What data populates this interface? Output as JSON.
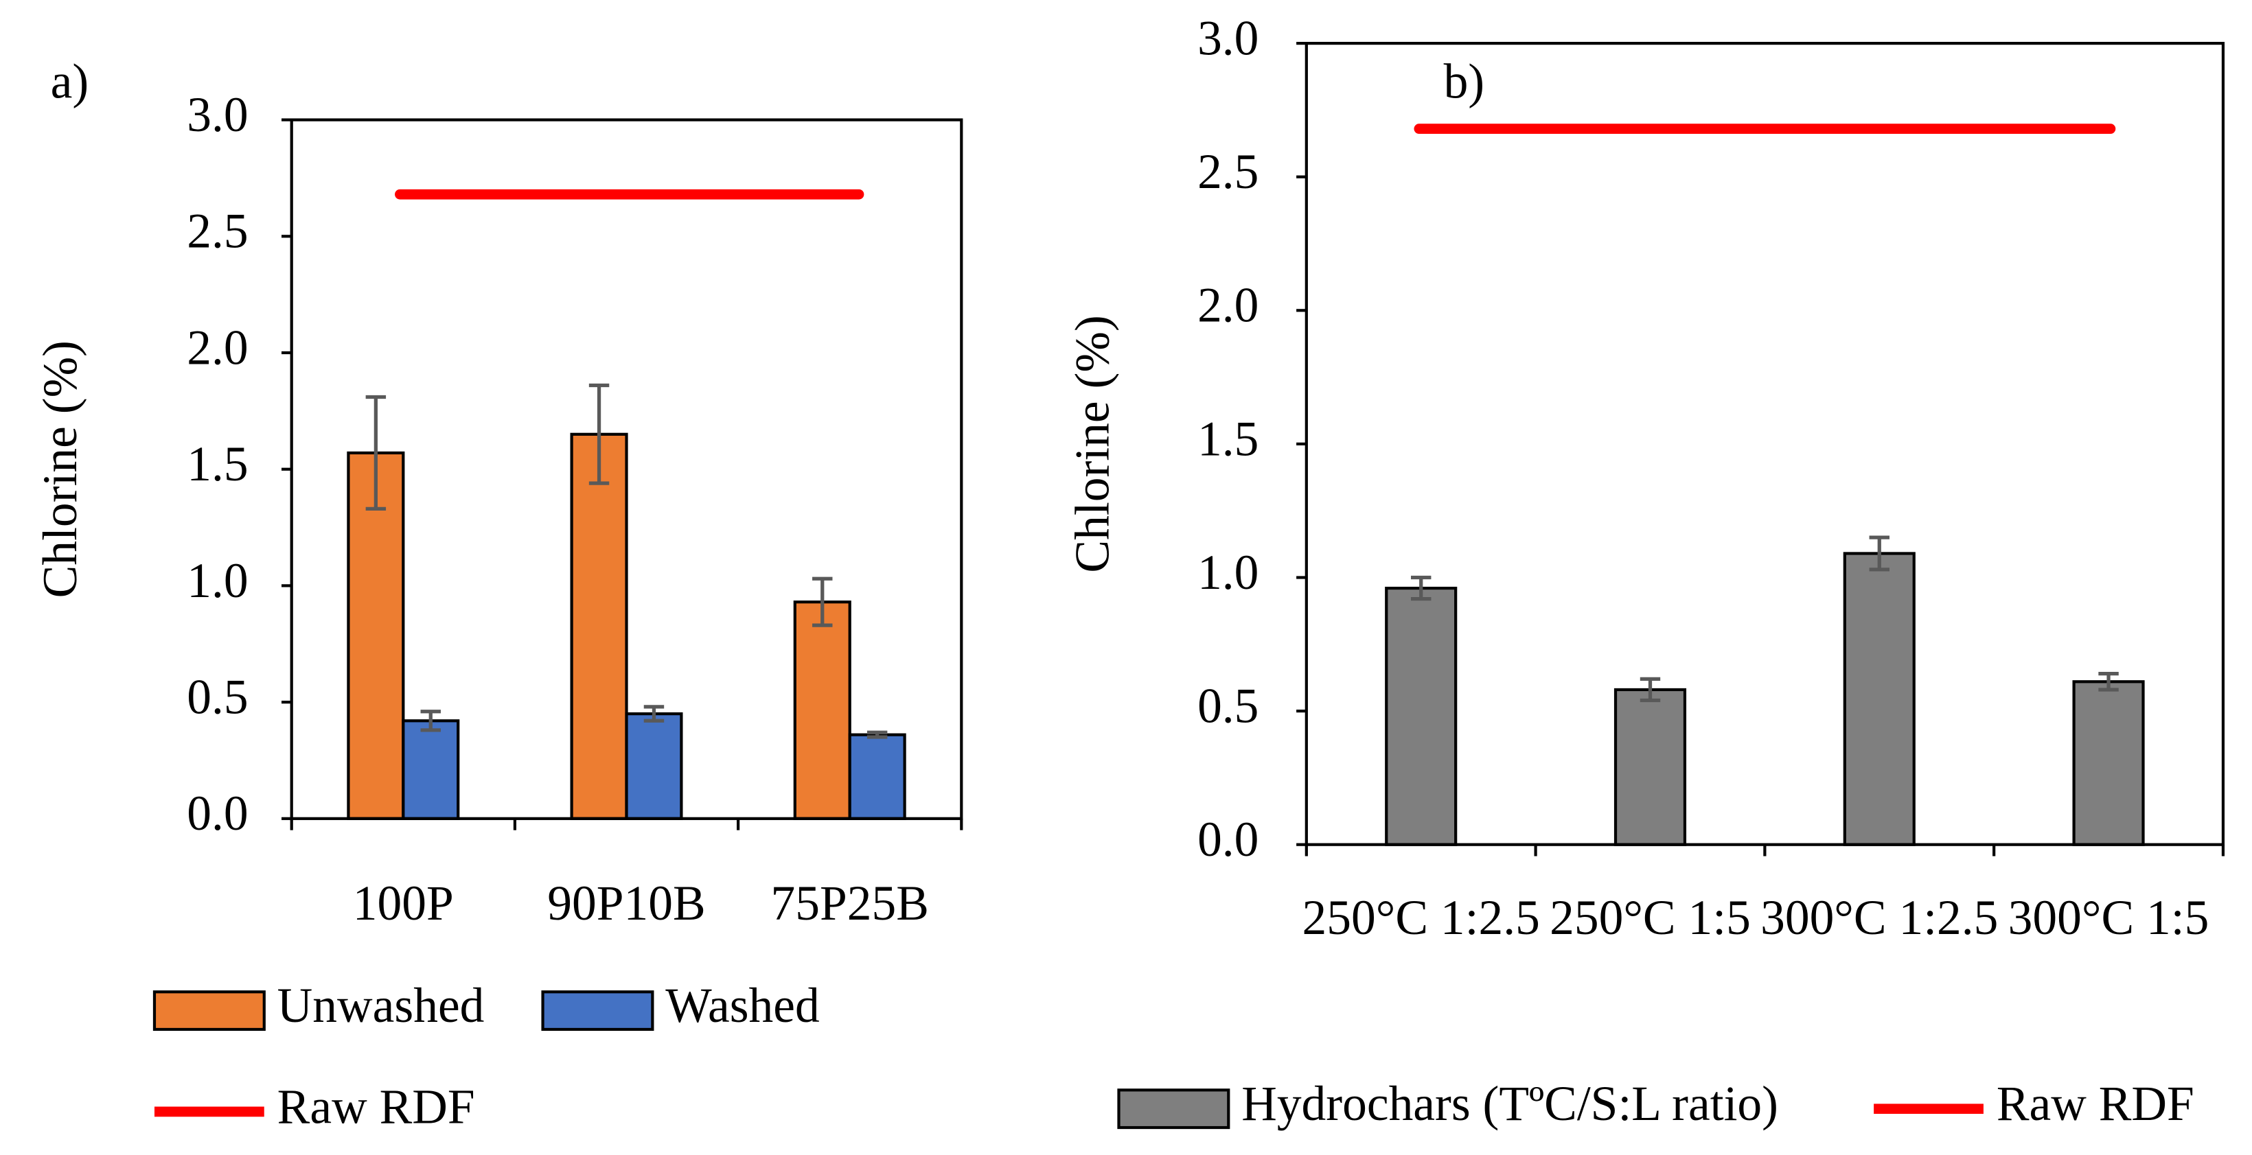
{
  "chart_data": [
    {
      "type": "bar",
      "panel_label": "a)",
      "y_label": "Chlorine (%)",
      "categories": [
        "100P",
        "90P10B",
        "75P25B"
      ],
      "series": [
        {
          "name": "Unwashed",
          "color": "#ed7d31",
          "values": [
            1.57,
            1.65,
            0.93
          ],
          "errors": [
            0.24,
            0.21,
            0.1
          ]
        },
        {
          "name": "Washed",
          "color": "#4472c4",
          "values": [
            0.42,
            0.45,
            0.36
          ],
          "errors": [
            0.04,
            0.03,
            0.01
          ]
        }
      ],
      "reference_line": {
        "name": "Raw RDF",
        "value": 2.68,
        "color": "#ff0000"
      },
      "ylim": [
        0,
        3
      ],
      "yticks": [
        {
          "value": 0,
          "label": "0.0"
        },
        0.5,
        {
          "value": 1,
          "label": "1.0"
        },
        1.5,
        {
          "value": 2,
          "label": "2.0"
        },
        2.5,
        {
          "value": 3,
          "label": "3.0"
        }
      ]
    },
    {
      "type": "bar",
      "panel_label": "b)",
      "y_label": "Chlorine (%)",
      "categories": [
        "250°C 1:2.5",
        "250°C 1:5",
        "300°C 1:2.5",
        "300°C 1:5"
      ],
      "series": [
        {
          "name": "Hydrochars (TºC/S:L ratio)",
          "color": "#7f7f7f",
          "values": [
            0.96,
            0.58,
            1.09,
            0.61
          ],
          "errors": [
            0.04,
            0.04,
            0.06,
            0.03
          ]
        }
      ],
      "reference_line": {
        "name": "Raw RDF",
        "value": 2.68,
        "color": "#ff0000"
      },
      "ylim": [
        0,
        3
      ],
      "yticks": [
        {
          "value": 0,
          "label": "0.0"
        },
        0.5,
        {
          "value": 1,
          "label": "1.0"
        },
        1.5,
        {
          "value": 2,
          "label": "2.0"
        },
        2.5,
        {
          "value": 3,
          "label": "3.0"
        }
      ]
    }
  ]
}
